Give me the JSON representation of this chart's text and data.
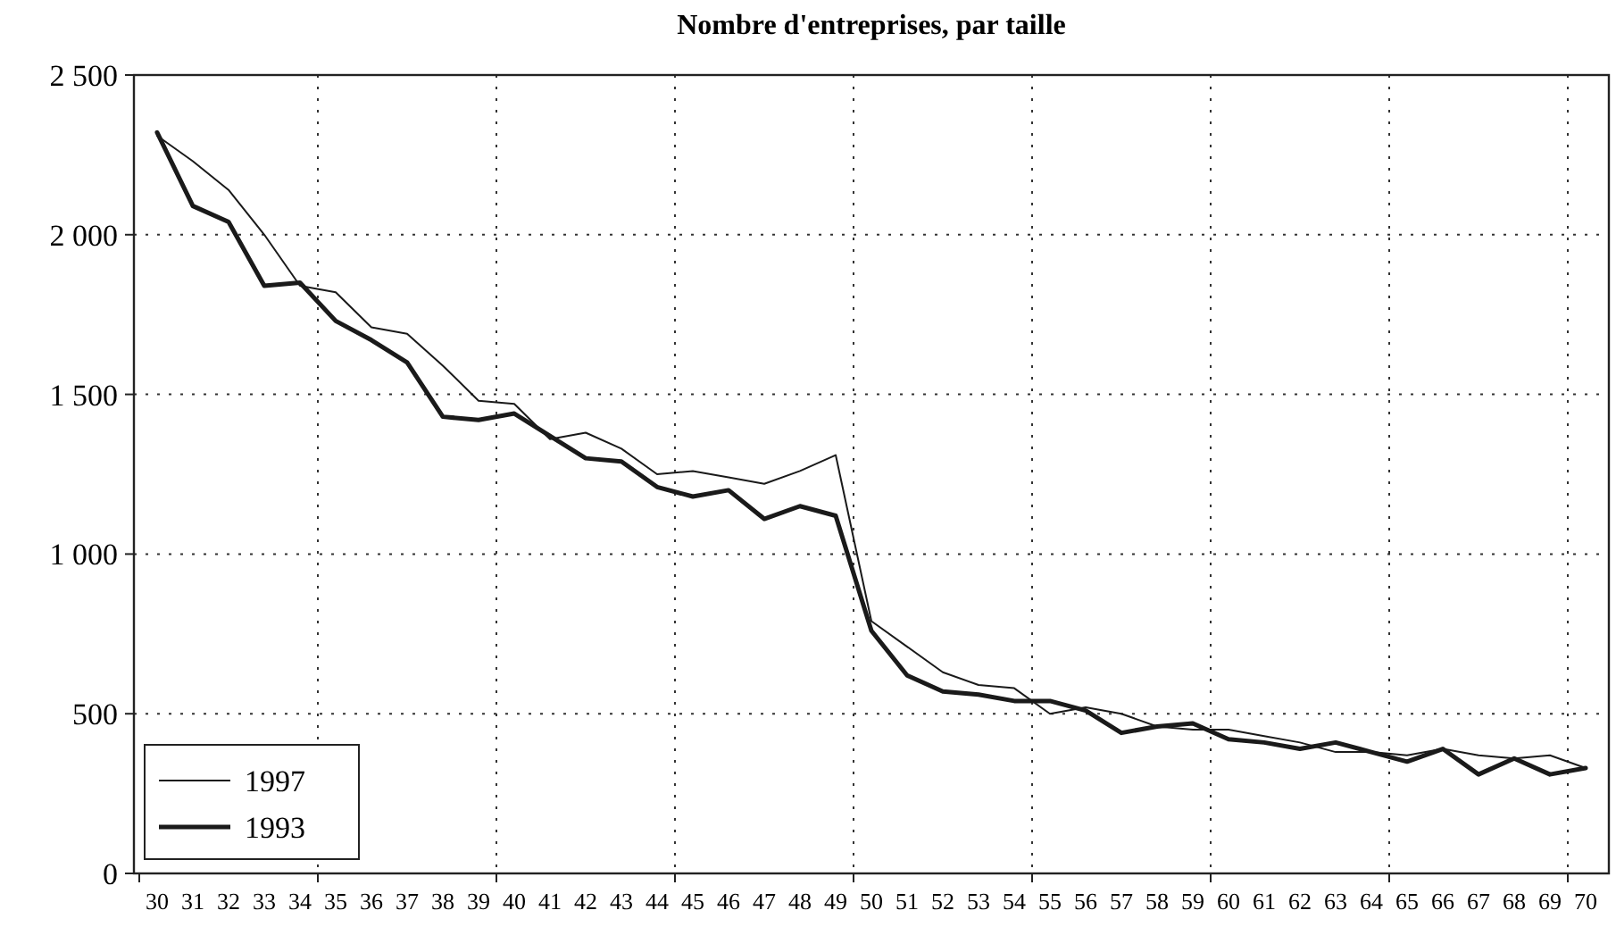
{
  "chart_data": {
    "type": "line",
    "title": "Nombre d'entreprises, par taille",
    "categories": [
      "30",
      "31",
      "32",
      "33",
      "34",
      "35",
      "36",
      "37",
      "38",
      "39",
      "40",
      "41",
      "42",
      "43",
      "44",
      "45",
      "46",
      "47",
      "48",
      "49",
      "50",
      "51",
      "52",
      "53",
      "54",
      "55",
      "56",
      "57",
      "58",
      "59",
      "60",
      "61",
      "62",
      "63",
      "64",
      "65",
      "66",
      "67",
      "68",
      "69",
      "70"
    ],
    "series": [
      {
        "name": "1997",
        "color": "#1a1a1a",
        "values": [
          2310,
          2230,
          2140,
          2000,
          1840,
          1820,
          1710,
          1690,
          1590,
          1480,
          1470,
          1360,
          1380,
          1330,
          1250,
          1260,
          1240,
          1220,
          1260,
          1310,
          790,
          710,
          630,
          590,
          580,
          500,
          520,
          500,
          460,
          450,
          450,
          430,
          410,
          380,
          380,
          370,
          390,
          370,
          360,
          370,
          330
        ]
      },
      {
        "name": "1993",
        "color": "#1a1a1a",
        "values": [
          2320,
          2090,
          2040,
          1840,
          1850,
          1730,
          1670,
          1600,
          1430,
          1420,
          1440,
          1370,
          1300,
          1290,
          1210,
          1180,
          1200,
          1110,
          1150,
          1120,
          760,
          620,
          570,
          560,
          540,
          540,
          510,
          440,
          460,
          470,
          420,
          410,
          390,
          410,
          380,
          350,
          390,
          310,
          360,
          310,
          330
        ]
      }
    ],
    "ylim": [
      0,
      2500
    ],
    "yticks": [
      {
        "value": 0,
        "label": "0"
      },
      {
        "value": 500,
        "label": "500"
      },
      {
        "value": 1000,
        "label": "1 000"
      },
      {
        "value": 1500,
        "label": "1 500"
      },
      {
        "value": 2000,
        "label": "2 000"
      },
      {
        "value": 2500,
        "label": "2 500"
      }
    ],
    "grid": true,
    "legend": "bottom left",
    "marker": "none",
    "line_style": "solid"
  }
}
